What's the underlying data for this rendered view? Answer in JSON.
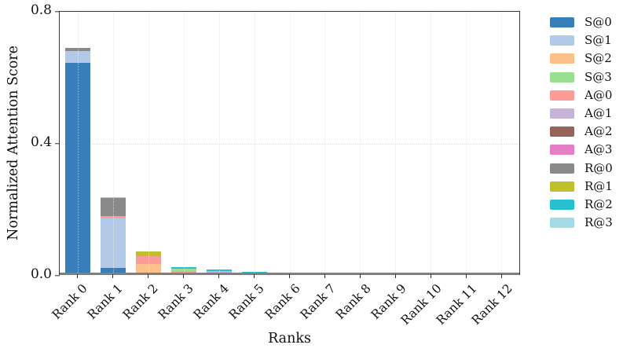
{
  "chart_data": {
    "type": "bar",
    "stacked": true,
    "title": "",
    "xlabel": "Ranks",
    "ylabel": "Normalized Attention Score",
    "ylim": [
      0,
      0.8
    ],
    "yticks": [
      {
        "value": 0.0,
        "label": "0.0"
      },
      {
        "value": 0.4,
        "label": "0.4"
      },
      {
        "value": 0.8,
        "label": "0.8"
      }
    ],
    "grid": "dotted vertical line per category; dotted horizontal line at 0.4",
    "legend_position": "right-outside",
    "categories": [
      "Rank 0",
      "Rank 1",
      "Rank 2",
      "Rank 3",
      "Rank 4",
      "Rank 5",
      "Rank 6",
      "Rank 7",
      "Rank 8",
      "Rank 9",
      "Rank 10",
      "Rank 11",
      "Rank 12"
    ],
    "legend": [
      "S@0",
      "S@1",
      "S@2",
      "S@3",
      "A@0",
      "A@1",
      "A@2",
      "A@3",
      "R@0",
      "R@1",
      "R@2",
      "R@3"
    ],
    "series_colors": {
      "S@0": "#387eb8",
      "S@1": "#b3c9e8",
      "S@2": "#fdc088",
      "S@3": "#99df90",
      "A@0": "#fc9c99",
      "A@1": "#c7b4d7",
      "A@2": "#96635a",
      "A@3": "#e57fc5",
      "R@0": "#898989",
      "R@1": "#bfc02e",
      "R@2": "#27c0d1",
      "R@3": "#a3dbe6"
    },
    "stacks": [
      [
        {
          "series": "S@0",
          "value": 0.64
        },
        {
          "series": "S@1",
          "value": 0.036
        },
        {
          "series": "R@0",
          "value": 0.009
        }
      ],
      [
        {
          "series": "S@0",
          "value": 0.02
        },
        {
          "series": "S@1",
          "value": 0.15
        },
        {
          "series": "A@0",
          "value": 0.006
        },
        {
          "series": "R@0",
          "value": 0.054
        },
        {
          "series": "S@3",
          "value": 0.003
        }
      ],
      [
        {
          "series": "S@2",
          "value": 0.032
        },
        {
          "series": "A@0",
          "value": 0.022
        },
        {
          "series": "R@1",
          "value": 0.014
        }
      ],
      [
        {
          "series": "A@0",
          "value": 0.01
        },
        {
          "series": "S@3",
          "value": 0.007
        },
        {
          "series": "R@2",
          "value": 0.004
        }
      ],
      [
        {
          "series": "A@1",
          "value": 0.01
        },
        {
          "series": "R@2",
          "value": 0.004
        }
      ],
      [
        {
          "series": "A@1",
          "value": 0.003
        },
        {
          "series": "R@2",
          "value": 0.004
        }
      ],
      [
        {
          "series": "A@1",
          "value": 0.003
        },
        {
          "series": "R@2",
          "value": 0.003
        }
      ],
      [],
      [],
      [],
      [],
      [],
      []
    ]
  }
}
